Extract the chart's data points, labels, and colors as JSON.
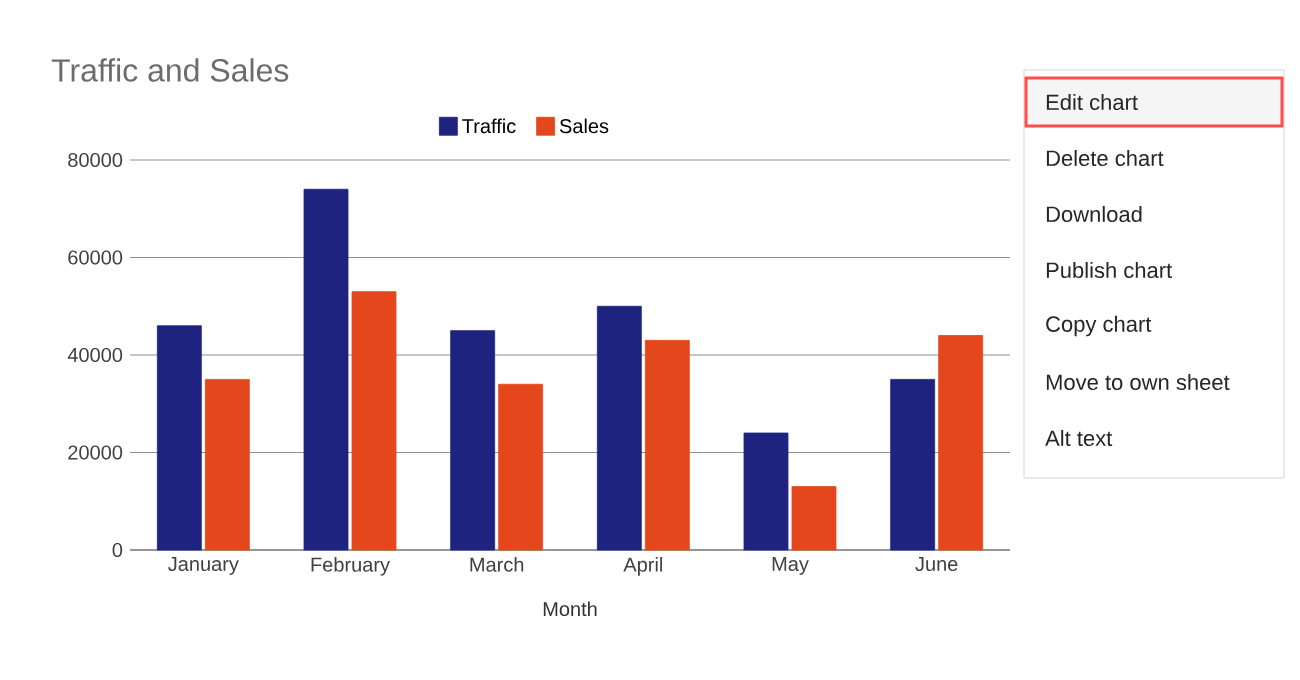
{
  "chart_data": {
    "type": "bar",
    "title": "Traffic and Sales",
    "xlabel": "Month",
    "categories": [
      "January",
      "February",
      "March",
      "April",
      "May",
      "June"
    ],
    "series": [
      {
        "name": "Traffic",
        "color": "#1e2380",
        "values": [
          46000,
          74000,
          45000,
          50000,
          24000,
          35000
        ]
      },
      {
        "name": "Sales",
        "color": "#e4471b",
        "values": [
          35000,
          53000,
          34000,
          43000,
          13000,
          44000
        ]
      }
    ],
    "ylim": [
      0,
      80000
    ],
    "yticks": [
      0,
      20000,
      40000,
      60000,
      80000
    ],
    "grid": "y",
    "legend": "top",
    "annotations": [
      "Edit chart",
      "Delete chart",
      "Download",
      "Publish chart",
      "Copy chart",
      "Move to own sheet",
      "Alt text"
    ]
  }
}
